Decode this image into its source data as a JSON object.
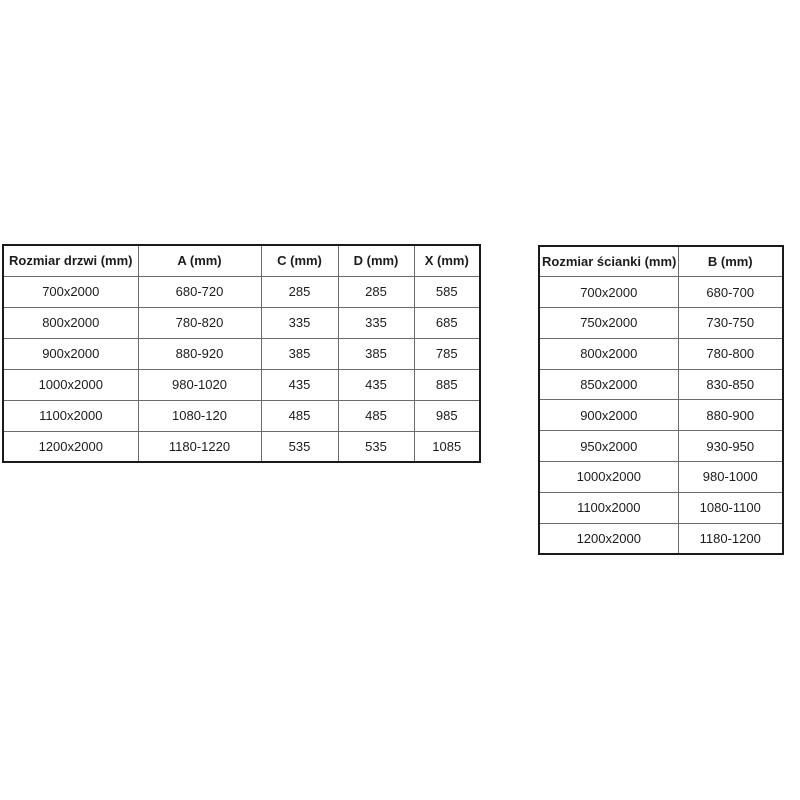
{
  "colors": {
    "background": "#ffffff",
    "border_outer": "#1a1a1a",
    "border_inner": "#6b6b6b",
    "text": "#1c1c1c"
  },
  "tables": [
    {
      "name": "door-size-table",
      "headers": [
        "Rozmiar drzwi (mm)",
        "A (mm)",
        "C (mm)",
        "D (mm)",
        "X (mm)"
      ],
      "rows": [
        [
          "700x2000",
          "680-720",
          "285",
          "285",
          "585"
        ],
        [
          "800x2000",
          "780-820",
          "335",
          "335",
          "685"
        ],
        [
          "900x2000",
          "880-920",
          "385",
          "385",
          "785"
        ],
        [
          "1000x2000",
          "980-1020",
          "435",
          "435",
          "885"
        ],
        [
          "1100x2000",
          "1080-120",
          "485",
          "485",
          "985"
        ],
        [
          "1200x2000",
          "1180-1220",
          "535",
          "535",
          "1085"
        ]
      ]
    },
    {
      "name": "wall-size-table",
      "headers": [
        "Rozmiar ścianki (mm)",
        "B (mm)"
      ],
      "rows": [
        [
          "700x2000",
          "680-700"
        ],
        [
          "750x2000",
          "730-750"
        ],
        [
          "800x2000",
          "780-800"
        ],
        [
          "850x2000",
          "830-850"
        ],
        [
          "900x2000",
          "880-900"
        ],
        [
          "950x2000",
          "930-950"
        ],
        [
          "1000x2000",
          "980-1000"
        ],
        [
          "1100x2000",
          "1080-1100"
        ],
        [
          "1200x2000",
          "1180-1200"
        ]
      ]
    }
  ]
}
